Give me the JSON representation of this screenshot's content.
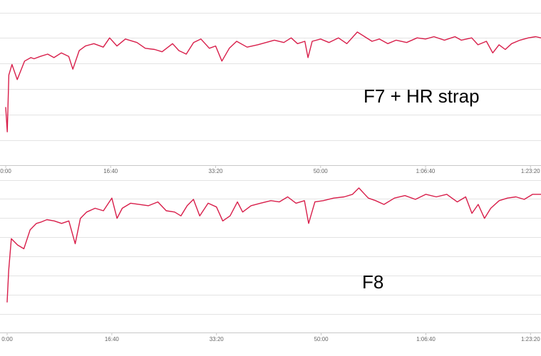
{
  "colors": {
    "series": "#d81e4a",
    "grid": "#e3e3e3"
  },
  "chart_data": [
    {
      "type": "line",
      "title": "",
      "annotation": "F7 + HR strap",
      "xlabel": "",
      "ylabel": "",
      "xlim": [
        0,
        5100
      ],
      "ylim": [
        0,
        1
      ],
      "grid": true,
      "x_ticks": [
        {
          "value": 0,
          "label": "0:00"
        },
        {
          "value": 1000,
          "label": "16:40"
        },
        {
          "value": 2000,
          "label": "33:20"
        },
        {
          "value": 3000,
          "label": "50:00"
        },
        {
          "value": 4000,
          "label": "1:06:40"
        },
        {
          "value": 5000,
          "label": "1:23:20"
        }
      ],
      "series": [
        {
          "x": [
            0,
            15,
            30,
            60,
            110,
            180,
            240,
            270,
            330,
            400,
            460,
            530,
            600,
            640,
            700,
            760,
            840,
            930,
            990,
            1060,
            1140,
            1250,
            1330,
            1420,
            1490,
            1590,
            1650,
            1720,
            1790,
            1860,
            1940,
            2000,
            2060,
            2130,
            2200,
            2300,
            2400,
            2480,
            2560,
            2650,
            2720,
            2780,
            2850,
            2880,
            2920,
            3000,
            3080,
            3170,
            3250,
            3350,
            3420,
            3490,
            3560,
            3640,
            3720,
            3820,
            3920,
            4000,
            4080,
            4180,
            4280,
            4340,
            4440,
            4500,
            4580,
            4640,
            4700,
            4760,
            4820,
            4900,
            4980,
            5050,
            5100
          ],
          "y": [
            0.35,
            0.14,
            0.63,
            0.72,
            0.59,
            0.75,
            0.78,
            0.77,
            0.79,
            0.81,
            0.78,
            0.82,
            0.79,
            0.68,
            0.84,
            0.88,
            0.9,
            0.87,
            0.95,
            0.88,
            0.94,
            0.91,
            0.86,
            0.85,
            0.83,
            0.9,
            0.84,
            0.81,
            0.91,
            0.94,
            0.86,
            0.88,
            0.75,
            0.86,
            0.92,
            0.87,
            0.89,
            0.91,
            0.93,
            0.91,
            0.95,
            0.9,
            0.92,
            0.78,
            0.92,
            0.94,
            0.91,
            0.95,
            0.9,
            1.0,
            0.96,
            0.92,
            0.94,
            0.9,
            0.93,
            0.91,
            0.95,
            0.94,
            0.96,
            0.93,
            0.96,
            0.93,
            0.95,
            0.89,
            0.92,
            0.82,
            0.89,
            0.85,
            0.9,
            0.93,
            0.95,
            0.96,
            0.95
          ]
        }
      ]
    },
    {
      "type": "line",
      "title": "",
      "annotation": "F8",
      "xlabel": "",
      "ylabel": "",
      "xlim": [
        0,
        5100
      ],
      "ylim": [
        0,
        1
      ],
      "grid": true,
      "x_ticks": [
        {
          "value": 0,
          "label": "0:00"
        },
        {
          "value": 1000,
          "label": "16:40"
        },
        {
          "value": 2000,
          "label": "33:20"
        },
        {
          "value": 3000,
          "label": "50:00"
        },
        {
          "value": 4000,
          "label": "1:06:40"
        },
        {
          "value": 5000,
          "label": "1:23:20"
        }
      ],
      "series": [
        {
          "x": [
            0,
            15,
            40,
            100,
            160,
            220,
            280,
            320,
            380,
            450,
            520,
            590,
            650,
            700,
            760,
            840,
            920,
            1000,
            1050,
            1100,
            1180,
            1260,
            1350,
            1440,
            1520,
            1600,
            1660,
            1720,
            1780,
            1840,
            1920,
            2000,
            2060,
            2130,
            2200,
            2250,
            2330,
            2420,
            2520,
            2600,
            2680,
            2760,
            2840,
            2880,
            2940,
            3020,
            3120,
            3220,
            3300,
            3360,
            3450,
            3520,
            3600,
            3700,
            3800,
            3900,
            4000,
            4100,
            4200,
            4300,
            4380,
            4440,
            4500,
            4560,
            4620,
            4700,
            4780,
            4860,
            4940,
            5020,
            5100
          ],
          "y": [
            0.1,
            0.35,
            0.6,
            0.55,
            0.52,
            0.67,
            0.72,
            0.73,
            0.75,
            0.74,
            0.72,
            0.74,
            0.56,
            0.76,
            0.81,
            0.84,
            0.82,
            0.92,
            0.76,
            0.84,
            0.88,
            0.87,
            0.86,
            0.89,
            0.82,
            0.81,
            0.78,
            0.86,
            0.91,
            0.78,
            0.88,
            0.85,
            0.74,
            0.78,
            0.89,
            0.81,
            0.86,
            0.88,
            0.9,
            0.89,
            0.93,
            0.88,
            0.9,
            0.72,
            0.89,
            0.9,
            0.92,
            0.93,
            0.95,
            1.0,
            0.92,
            0.9,
            0.87,
            0.92,
            0.94,
            0.91,
            0.95,
            0.93,
            0.95,
            0.89,
            0.93,
            0.8,
            0.87,
            0.76,
            0.84,
            0.9,
            0.92,
            0.93,
            0.91,
            0.95,
            0.95
          ]
        }
      ]
    }
  ]
}
